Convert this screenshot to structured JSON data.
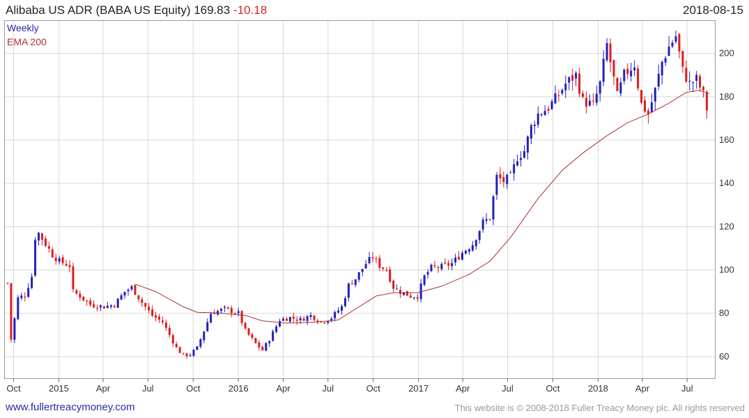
{
  "header": {
    "title": "Alibaba US ADR (BABA US Equity) 169.83",
    "change": "-10.18",
    "date": "2018-08-15"
  },
  "legend": {
    "period": "Weekly",
    "indicator": "EMA 200"
  },
  "footer": {
    "url": "www.fullertreacymoney.com",
    "copyright": "This website is © 2008-2018 Fuller Treacy Money plc. All rights reserved"
  },
  "colors": {
    "up": "#2020c0",
    "down": "#e01b1b",
    "ema": "#b03030",
    "grid": "#d8d8d8"
  },
  "chart_data": {
    "type": "candlestick",
    "period": "weekly",
    "x_start": "2014-09-19",
    "x_end": "2018-08-15",
    "ylim": [
      50,
      215
    ],
    "yticks": [
      60,
      80,
      100,
      120,
      140,
      160,
      180,
      200
    ],
    "xticks": [
      {
        "label": "Oct",
        "date": "2014-10-01"
      },
      {
        "label": "2015",
        "date": "2015-01-01"
      },
      {
        "label": "Apr",
        "date": "2015-04-01"
      },
      {
        "label": "Jul",
        "date": "2015-07-01"
      },
      {
        "label": "Oct",
        "date": "2015-10-01"
      },
      {
        "label": "2016",
        "date": "2016-01-01"
      },
      {
        "label": "Apr",
        "date": "2016-04-01"
      },
      {
        "label": "Jul",
        "date": "2016-07-01"
      },
      {
        "label": "Oct",
        "date": "2016-10-01"
      },
      {
        "label": "2017",
        "date": "2017-01-01"
      },
      {
        "label": "Apr",
        "date": "2017-04-01"
      },
      {
        "label": "Jul",
        "date": "2017-07-01"
      },
      {
        "label": "Oct",
        "date": "2017-10-01"
      },
      {
        "label": "2018",
        "date": "2018-01-01"
      },
      {
        "label": "Apr",
        "date": "2018-04-01"
      },
      {
        "label": "Jul",
        "date": "2018-07-01"
      }
    ],
    "close_keypoints": [
      [
        "2014-09-19",
        93.9
      ],
      [
        "2014-09-26",
        68.0
      ],
      [
        "2014-10-10",
        87.0
      ],
      [
        "2014-10-24",
        88.5
      ],
      [
        "2014-11-07",
        97.0
      ],
      [
        "2014-11-14",
        115.0
      ],
      [
        "2014-11-21",
        117.0
      ],
      [
        "2014-12-05",
        112.0
      ],
      [
        "2014-12-19",
        107.0
      ],
      [
        "2015-01-02",
        104.0
      ],
      [
        "2015-01-23",
        102.0
      ],
      [
        "2015-01-30",
        90.0
      ],
      [
        "2015-02-13",
        88.0
      ],
      [
        "2015-03-06",
        84.0
      ],
      [
        "2015-04-03",
        83.0
      ],
      [
        "2015-04-24",
        84.0
      ],
      [
        "2015-05-15",
        90.0
      ],
      [
        "2015-05-29",
        92.0
      ],
      [
        "2015-06-19",
        85.0
      ],
      [
        "2015-07-10",
        79.0
      ],
      [
        "2015-07-31",
        76.0
      ],
      [
        "2015-08-14",
        70.0
      ],
      [
        "2015-08-28",
        64.0
      ],
      [
        "2015-09-11",
        60.5
      ],
      [
        "2015-09-25",
        61.0
      ],
      [
        "2015-10-09",
        64.0
      ],
      [
        "2015-10-23",
        72.0
      ],
      [
        "2015-11-06",
        80.0
      ],
      [
        "2015-11-20",
        81.0
      ],
      [
        "2015-12-04",
        82.0
      ],
      [
        "2015-12-18",
        81.0
      ],
      [
        "2016-01-01",
        80.0
      ],
      [
        "2016-01-15",
        72.0
      ],
      [
        "2016-02-05",
        66.0
      ],
      [
        "2016-02-19",
        63.0
      ],
      [
        "2016-03-04",
        68.0
      ],
      [
        "2016-03-25",
        77.0
      ],
      [
        "2016-04-15",
        78.0
      ],
      [
        "2016-05-06",
        77.0
      ],
      [
        "2016-05-27",
        79.0
      ],
      [
        "2016-06-17",
        76.0
      ],
      [
        "2016-07-08",
        78.0
      ],
      [
        "2016-07-29",
        83.0
      ],
      [
        "2016-08-12",
        93.0
      ],
      [
        "2016-08-26",
        96.0
      ],
      [
        "2016-09-16",
        103.0
      ],
      [
        "2016-09-30",
        106.0
      ],
      [
        "2016-10-14",
        102.0
      ],
      [
        "2016-10-28",
        100.0
      ],
      [
        "2016-11-11",
        92.0
      ],
      [
        "2016-11-25",
        90.0
      ],
      [
        "2016-12-16",
        88.0
      ],
      [
        "2016-12-30",
        88.0
      ],
      [
        "2017-01-13",
        97.0
      ],
      [
        "2017-01-27",
        101.0
      ],
      [
        "2017-02-17",
        101.5
      ],
      [
        "2017-03-10",
        103.0
      ],
      [
        "2017-03-31",
        108.0
      ],
      [
        "2017-04-21",
        112.0
      ],
      [
        "2017-05-12",
        122.0
      ],
      [
        "2017-05-26",
        124.0
      ],
      [
        "2017-06-09",
        143.0
      ],
      [
        "2017-06-23",
        141.0
      ],
      [
        "2017-07-07",
        143.0
      ],
      [
        "2017-07-21",
        152.0
      ],
      [
        "2017-08-04",
        155.0
      ],
      [
        "2017-08-18",
        166.0
      ],
      [
        "2017-09-01",
        172.0
      ],
      [
        "2017-09-22",
        175.0
      ],
      [
        "2017-10-13",
        181.0
      ],
      [
        "2017-10-27",
        186.0
      ],
      [
        "2017-11-17",
        190.0
      ],
      [
        "2017-12-01",
        178.0
      ],
      [
        "2017-12-22",
        176.0
      ],
      [
        "2018-01-05",
        186.0
      ],
      [
        "2018-01-19",
        204.0
      ],
      [
        "2018-02-09",
        180.0
      ],
      [
        "2018-02-23",
        190.0
      ],
      [
        "2018-03-16",
        195.0
      ],
      [
        "2018-03-29",
        177.0
      ],
      [
        "2018-04-13",
        172.0
      ],
      [
        "2018-04-27",
        183.0
      ],
      [
        "2018-05-11",
        196.0
      ],
      [
        "2018-05-25",
        203.0
      ],
      [
        "2018-06-08",
        208.0
      ],
      [
        "2018-06-22",
        192.0
      ],
      [
        "2018-07-06",
        186.0
      ],
      [
        "2018-07-20",
        188.0
      ],
      [
        "2018-08-03",
        181.0
      ],
      [
        "2018-08-15",
        169.83
      ]
    ],
    "ema_200": [
      [
        "2015-06-05",
        93.5
      ],
      [
        "2015-07-17",
        90.0
      ],
      [
        "2015-09-11",
        83.0
      ],
      [
        "2015-10-09",
        80.5
      ],
      [
        "2015-11-20",
        80.2
      ],
      [
        "2016-01-15",
        79.0
      ],
      [
        "2016-02-19",
        76.5
      ],
      [
        "2016-04-08",
        75.5
      ],
      [
        "2016-06-10",
        76.0
      ],
      [
        "2016-07-22",
        77.0
      ],
      [
        "2016-09-02",
        83.0
      ],
      [
        "2016-10-07",
        88.0
      ],
      [
        "2016-11-11",
        89.5
      ],
      [
        "2016-12-30",
        89.5
      ],
      [
        "2017-02-17",
        92.5
      ],
      [
        "2017-04-14",
        98.0
      ],
      [
        "2017-05-26",
        104.0
      ],
      [
        "2017-07-07",
        115.0
      ],
      [
        "2017-09-01",
        133.0
      ],
      [
        "2017-10-20",
        146.0
      ],
      [
        "2017-12-01",
        154.0
      ],
      [
        "2018-01-19",
        162.0
      ],
      [
        "2018-03-02",
        168.0
      ],
      [
        "2018-04-13",
        172.0
      ],
      [
        "2018-05-25",
        177.0
      ],
      [
        "2018-06-29",
        182.0
      ],
      [
        "2018-07-27",
        183.0
      ],
      [
        "2018-08-15",
        181.5
      ]
    ]
  }
}
